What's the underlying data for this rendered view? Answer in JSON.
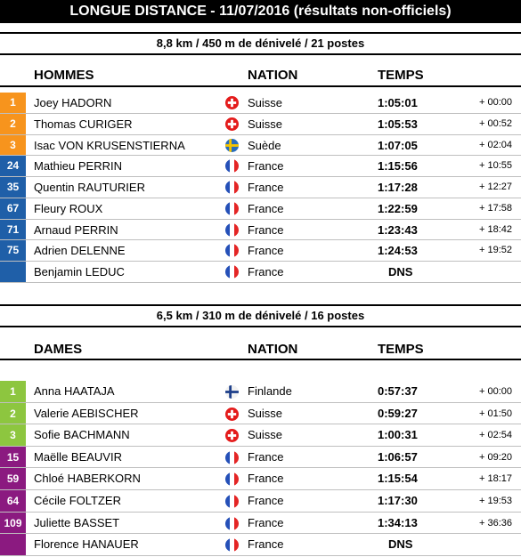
{
  "title": "LONGUE DISTANCE - 11/07/2016 (résultats non-officiels)",
  "men": {
    "course": "8,8 km / 450 m de dénivelé / 21 postes",
    "headers": {
      "category": "HOMMES",
      "nation": "NATION",
      "time": "TEMPS"
    },
    "rows": [
      {
        "rank": "1",
        "name": "Joey HADORN",
        "flag": "switzerland-flag-icon",
        "country": "Suisse",
        "time": "1:05:01",
        "gap": "+ 00:00",
        "color": "#f7941d"
      },
      {
        "rank": "2",
        "name": "Thomas CURIGER",
        "flag": "switzerland-flag-icon",
        "country": "Suisse",
        "time": "1:05:53",
        "gap": "+ 00:52",
        "color": "#f7941d"
      },
      {
        "rank": "3",
        "name": "Isac VON KRUSENSTIERNA",
        "flag": "sweden-flag-icon",
        "country": "Suède",
        "time": "1:07:05",
        "gap": "+ 02:04",
        "color": "#f7941d"
      },
      {
        "rank": "24",
        "name": "Mathieu PERRIN",
        "flag": "france-flag-icon",
        "country": "France",
        "time": "1:15:56",
        "gap": "+ 10:55",
        "color": "#1f5fa8"
      },
      {
        "rank": "35",
        "name": "Quentin RAUTURIER",
        "flag": "france-flag-icon",
        "country": "France",
        "time": "1:17:28",
        "gap": "+ 12:27",
        "color": "#1f5fa8"
      },
      {
        "rank": "67",
        "name": "Fleury ROUX",
        "flag": "france-flag-icon",
        "country": "France",
        "time": "1:22:59",
        "gap": "+ 17:58",
        "color": "#1f5fa8"
      },
      {
        "rank": "71",
        "name": "Arnaud PERRIN",
        "flag": "france-flag-icon",
        "country": "France",
        "time": "1:23:43",
        "gap": "+ 18:42",
        "color": "#1f5fa8"
      },
      {
        "rank": "75",
        "name": "Adrien DELENNE",
        "flag": "france-flag-icon",
        "country": "France",
        "time": "1:24:53",
        "gap": "+ 19:52",
        "color": "#1f5fa8"
      },
      {
        "rank": "",
        "name": "Benjamin LEDUC",
        "flag": "france-flag-icon",
        "country": "France",
        "time": "DNS",
        "gap": "",
        "color": "#1f5fa8"
      }
    ]
  },
  "women": {
    "course": "6,5 km / 310 m de dénivelé / 16 postes",
    "headers": {
      "category": "DAMES",
      "nation": "NATION",
      "time": "TEMPS"
    },
    "rows": [
      {
        "rank": "1",
        "name": "Anna HAATAJA",
        "flag": "finland-flag-icon",
        "country": "Finlande",
        "time": "0:57:37",
        "gap": "+ 00:00",
        "color": "#8dc63f"
      },
      {
        "rank": "2",
        "name": "Valerie AEBISCHER",
        "flag": "switzerland-flag-icon",
        "country": "Suisse",
        "time": "0:59:27",
        "gap": "+ 01:50",
        "color": "#8dc63f"
      },
      {
        "rank": "3",
        "name": "Sofie BACHMANN",
        "flag": "switzerland-flag-icon",
        "country": "Suisse",
        "time": "1:00:31",
        "gap": "+ 02:54",
        "color": "#8dc63f"
      },
      {
        "rank": "15",
        "name": "Maëlle BEAUVIR",
        "flag": "france-flag-icon",
        "country": "France",
        "time": "1:06:57",
        "gap": "+ 09:20",
        "color": "#8b1a80"
      },
      {
        "rank": "59",
        "name": "Chloé HABERKORN",
        "flag": "france-flag-icon",
        "country": "France",
        "time": "1:15:54",
        "gap": "+ 18:17",
        "color": "#8b1a80"
      },
      {
        "rank": "64",
        "name": "Cécile FOLTZER",
        "flag": "france-flag-icon",
        "country": "France",
        "time": "1:17:30",
        "gap": "+ 19:53",
        "color": "#8b1a80"
      },
      {
        "rank": "109",
        "name": "Juliette BASSET",
        "flag": "france-flag-icon",
        "country": "France",
        "time": "1:34:13",
        "gap": "+ 36:36",
        "color": "#8b1a80"
      },
      {
        "rank": "",
        "name": "Florence HANAUER",
        "flag": "france-flag-icon",
        "country": "France",
        "time": "DNS",
        "gap": "",
        "color": "#8b1a80"
      }
    ]
  }
}
